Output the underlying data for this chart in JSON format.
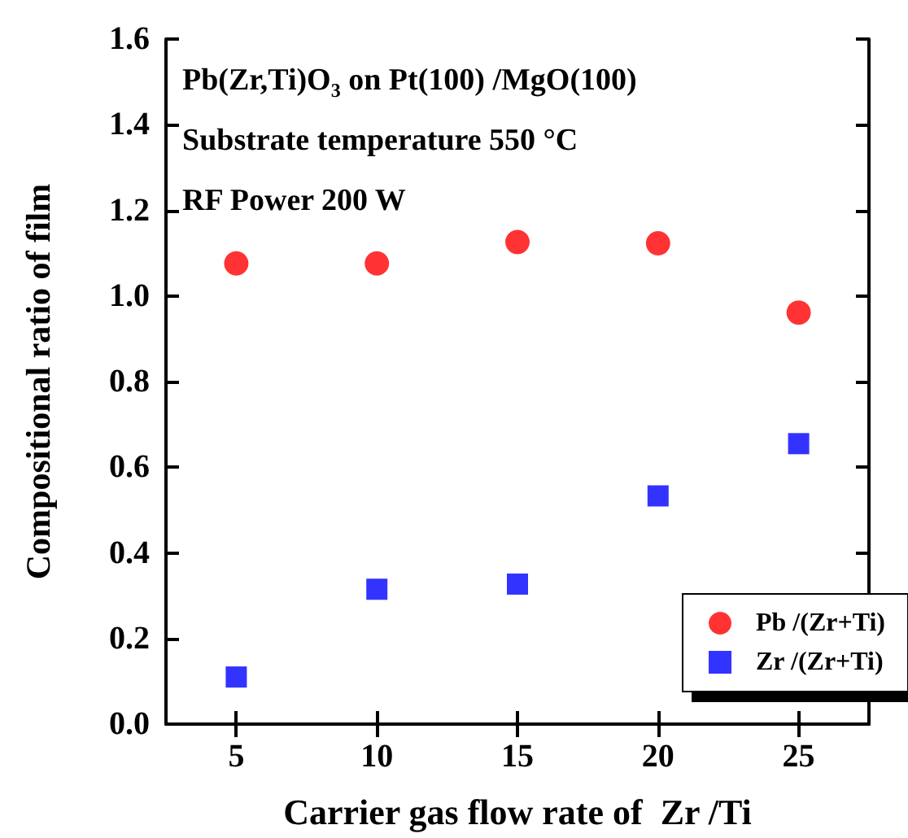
{
  "chart_data": {
    "type": "scatter",
    "annotations": [
      "Pb(Zr,Ti)O$_{3}$ on Pt(100) /MgO(100)",
      "Substrate temperature 550 °C",
      "RF Power 200 W"
    ],
    "xlabel": "Carrier gas flow rate of  Zr /Ti",
    "ylabel": "Compositional ratio of film",
    "x": [
      5,
      10,
      15,
      20,
      25
    ],
    "series": [
      {
        "name": "Pb /(Zr+Ti)",
        "color": "#ff0000",
        "marker": "circle",
        "values": [
          1.076,
          1.076,
          1.126,
          1.123,
          0.961
        ]
      },
      {
        "name": "Zr /(Zr+Ti)",
        "color": "#0000ff",
        "marker": "square",
        "values": [
          0.11,
          0.315,
          0.327,
          0.533,
          0.655
        ]
      }
    ],
    "xlim": [
      2.5,
      27.5
    ],
    "xticks": [
      5,
      10,
      15,
      20,
      25
    ],
    "ylim": [
      0,
      1.6
    ],
    "yticks": [
      {
        "value": 0,
        "label": "0.0"
      },
      0.2,
      0.4,
      0.6,
      0.8,
      {
        "value": 1,
        "label": "1.0"
      },
      1.2,
      1.4,
      1.6
    ],
    "grid": false,
    "legend": "bottom right"
  }
}
